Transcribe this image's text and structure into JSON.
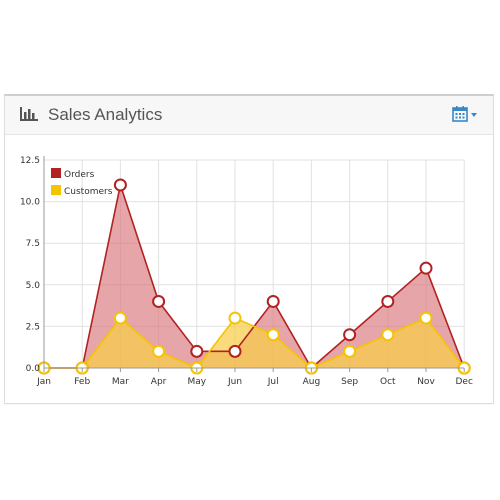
{
  "panel": {
    "title": "Sales Analytics",
    "title_icon": "bar-chart-icon",
    "toolbar_icon": "calendar-icon",
    "toolbar_caret": "chevron-down-icon"
  },
  "colors": {
    "orders_line": "#b22222",
    "orders_fill": "#d9747a",
    "customers_line": "#f5c400",
    "customers_fill": "#f7cd48",
    "toolbar_accent": "#3a87c8"
  },
  "chart_data": {
    "type": "area",
    "categories": [
      "Jan",
      "Feb",
      "Mar",
      "Apr",
      "May",
      "Jun",
      "Jul",
      "Aug",
      "Sep",
      "Oct",
      "Nov",
      "Dec"
    ],
    "series": [
      {
        "name": "Orders",
        "values": [
          0,
          0,
          11,
          4,
          1,
          1,
          4,
          0,
          2,
          4,
          6,
          0
        ]
      },
      {
        "name": "Customers",
        "values": [
          0,
          0,
          3,
          1,
          0,
          3,
          2,
          0,
          1,
          2,
          3,
          0
        ]
      }
    ],
    "y_ticks": [
      "0.0",
      "2.5",
      "5.0",
      "7.5",
      "10.0",
      "12.5"
    ],
    "ylim": [
      0,
      12.5
    ],
    "grid": true,
    "legend_position": "top-left"
  }
}
